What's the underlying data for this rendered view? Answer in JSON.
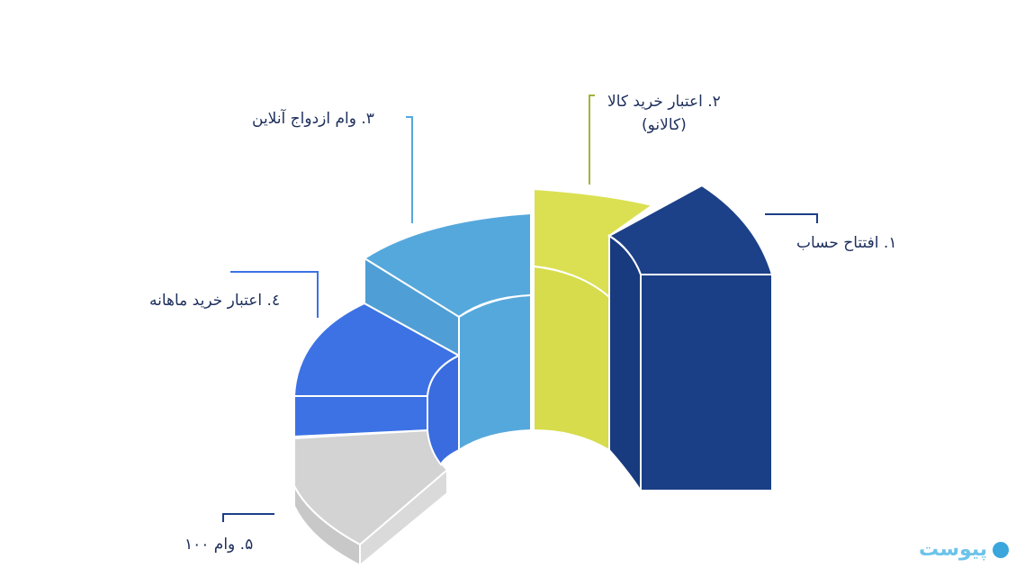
{
  "segments": [
    {
      "label": "۱. افتتاح حساب",
      "color": "#1b3f87"
    },
    {
      "label_line1": "۲. اعتبار خرید کالا",
      "label_line2": "(کالانو)",
      "color": "#dbe052"
    },
    {
      "label": "۳. وام ازدواج آنلاین",
      "color": "#55a8dc"
    },
    {
      "label": "٤. اعتبار خرید ماهانه",
      "color": "#3d72e4"
    },
    {
      "label": "۵. وام ۱۰۰",
      "color": "#cfcfcf"
    }
  ],
  "logo": {
    "text": "پیوست"
  }
}
